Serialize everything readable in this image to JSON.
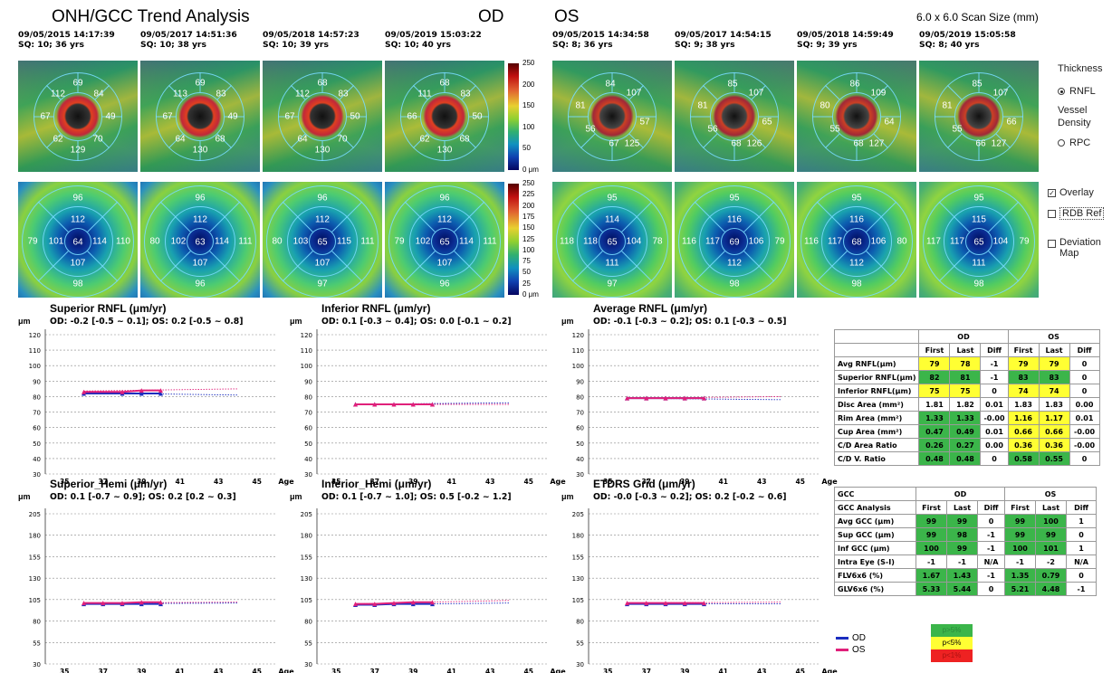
{
  "title": "ONH/GCC Trend Analysis",
  "od_label": "OD",
  "os_label": "OS",
  "scan_size": "6.0 x 6.0 Scan Size (mm)",
  "headers": [
    {
      "date": "09/05/2015 14:17:39",
      "sq": "SQ: 10; 36 yrs"
    },
    {
      "date": "09/05/2017 14:51:36",
      "sq": "SQ: 10; 38 yrs"
    },
    {
      "date": "09/05/2018 14:57:23",
      "sq": "SQ: 10; 39 yrs"
    },
    {
      "date": "09/05/2019 15:03:22",
      "sq": "SQ: 10; 40 yrs"
    },
    {
      "date": "09/05/2015 14:34:58",
      "sq": "SQ: 8; 36 yrs"
    },
    {
      "date": "09/05/2017 14:54:15",
      "sq": "SQ: 9; 38 yrs"
    },
    {
      "date": "09/05/2018 14:59:49",
      "sq": "SQ: 9; 39 yrs"
    },
    {
      "date": "09/05/2019 15:05:58",
      "sq": "SQ: 8; 40 yrs"
    }
  ],
  "rnfl_maps": [
    {
      "T": "67",
      "TS": "112",
      "S": "69",
      "NS": "84",
      "N": "49",
      "NI": "70",
      "I": "129",
      "TI": "62"
    },
    {
      "T": "67",
      "TS": "113",
      "S": "69",
      "NS": "83",
      "N": "49",
      "NI": "68",
      "I": "130",
      "TI": "64"
    },
    {
      "T": "67",
      "TS": "112",
      "S": "68",
      "NS": "83",
      "N": "50",
      "NI": "70",
      "I": "130",
      "TI": "64"
    },
    {
      "T": "66",
      "TS": "111",
      "S": "68",
      "NS": "83",
      "N": "50",
      "NI": "68",
      "I": "130",
      "TI": "62"
    },
    {
      "T": "81",
      "TS": "",
      "S": "84",
      "NS": "107",
      "N": "57",
      "NI": "125",
      "I": "67",
      "TI": "56"
    },
    {
      "T": "81",
      "TS": "",
      "S": "85",
      "NS": "107",
      "N": "65",
      "NI": "126",
      "I": "68",
      "TI": "56"
    },
    {
      "T": "80",
      "TS": "",
      "S": "86",
      "NS": "109",
      "N": "64",
      "NI": "127",
      "I": "68",
      "TI": "55"
    },
    {
      "T": "81",
      "TS": "",
      "S": "85",
      "NS": "107",
      "N": "66",
      "NI": "127",
      "I": "66",
      "TI": "55"
    }
  ],
  "gcc_maps": [
    {
      "so": "96",
      "si": "112",
      "to": "79",
      "ti": "101",
      "c": "64",
      "ni": "114",
      "no": "110",
      "ii": "107",
      "io": "98"
    },
    {
      "so": "96",
      "si": "112",
      "to": "80",
      "ti": "102",
      "c": "63",
      "ni": "114",
      "no": "111",
      "ii": "107",
      "io": "96"
    },
    {
      "so": "96",
      "si": "112",
      "to": "80",
      "ti": "103",
      "c": "65",
      "ni": "115",
      "no": "111",
      "ii": "107",
      "io": "97"
    },
    {
      "so": "96",
      "si": "112",
      "to": "79",
      "ti": "102",
      "c": "65",
      "ni": "114",
      "no": "111",
      "ii": "107",
      "io": "96"
    },
    {
      "so": "95",
      "si": "114",
      "to": "118",
      "ti": "118",
      "c": "65",
      "ni": "104",
      "no": "78",
      "ii": "111",
      "io": "97"
    },
    {
      "so": "95",
      "si": "116",
      "to": "116",
      "ti": "117",
      "c": "69",
      "ni": "106",
      "no": "79",
      "ii": "112",
      "io": "98"
    },
    {
      "so": "95",
      "si": "116",
      "to": "116",
      "ti": "117",
      "c": "68",
      "ni": "106",
      "no": "80",
      "ii": "112",
      "io": "98"
    },
    {
      "so": "95",
      "si": "115",
      "to": "117",
      "ti": "117",
      "c": "65",
      "ni": "104",
      "no": "79",
      "ii": "111",
      "io": "98"
    }
  ],
  "colorbar1": [
    "250",
    "200",
    "150",
    "100",
    "50",
    "0 μm"
  ],
  "colorbar1_ticks": [
    "250",
    "225",
    "200",
    "175",
    "150",
    "125",
    "100",
    "75",
    "50",
    "25",
    "0 μm"
  ],
  "side": {
    "thickness": "Thickness",
    "rnfl": "RNFL",
    "vessel": "Vessel",
    "density": "Density",
    "rpc": "RPC",
    "overlay": "Overlay",
    "rdb": "RDB Ref",
    "dev1": "Deviation",
    "dev2": "Map"
  },
  "charts": [
    {
      "title": "Superior RNFL (μm/yr)",
      "sub": "OD: -0.2 [-0.5 ~ 0.1]; OS: 0.2 [-0.5 ~ 0.8]",
      "ylabels": [
        "120",
        "110",
        "100",
        "90",
        "80",
        "70",
        "60",
        "50",
        "40",
        "30"
      ]
    },
    {
      "title": "Inferior RNFL (μm/yr)",
      "sub": "OD: 0.1 [-0.3 ~ 0.4]; OS: 0.0 [-0.1 ~ 0.2]",
      "ylabels": [
        "120",
        "110",
        "100",
        "90",
        "80",
        "70",
        "60",
        "50",
        "40",
        "30"
      ]
    },
    {
      "title": "Average RNFL (μm/yr)",
      "sub": "OD: -0.1 [-0.3 ~ 0.2]; OS: 0.1 [-0.3 ~ 0.5]",
      "ylabels": [
        "120",
        "110",
        "100",
        "90",
        "80",
        "70",
        "60",
        "50",
        "40",
        "30"
      ]
    },
    {
      "title": "Superior_Hemi (μm/yr)",
      "sub": "OD: 0.1 [-0.7 ~ 0.9]; OS: 0.2 [0.2 ~ 0.3]",
      "ylabels": [
        "205",
        "180",
        "155",
        "130",
        "105",
        "80",
        "55",
        "30"
      ]
    },
    {
      "title": "Inferior_Hemi (μm/yr)",
      "sub": "OD: 0.1 [-0.7 ~ 1.0]; OS: 0.5 [-0.2 ~ 1.2]",
      "ylabels": [
        "205",
        "180",
        "155",
        "130",
        "105",
        "80",
        "55",
        "30"
      ]
    },
    {
      "title": "ETDRS Grid (μm/yr)",
      "sub": "OD: -0.0 [-0.3 ~ 0.2]; OS: 0.2 [-0.2 ~ 0.6]",
      "ylabels": [
        "205",
        "180",
        "155",
        "130",
        "105",
        "80",
        "55",
        "30"
      ]
    }
  ],
  "xlabels": [
    "35",
    "37",
    "39",
    "41",
    "43",
    "45"
  ],
  "age_label": "Age",
  "um_label": "μm",
  "chart_data": [
    {
      "type": "line",
      "title": "Superior RNFL (μm/yr)",
      "ylim": [
        30,
        120
      ],
      "xlim": [
        34,
        46
      ],
      "series": [
        {
          "name": "OD",
          "x": [
            36,
            38,
            39,
            40
          ],
          "values": [
            82,
            82,
            82,
            82
          ]
        },
        {
          "name": "OS",
          "x": [
            36,
            38,
            39,
            40
          ],
          "values": [
            83,
            83,
            84,
            84
          ]
        }
      ],
      "trend_od": [
        [
          36,
          82.4
        ],
        [
          44,
          81.0
        ]
      ],
      "trend_os": [
        [
          36,
          83.6
        ],
        [
          44,
          85.0
        ]
      ]
    },
    {
      "type": "line",
      "title": "Inferior RNFL (μm/yr)",
      "ylim": [
        30,
        120
      ],
      "xlim": [
        34,
        46
      ],
      "series": [
        {
          "name": "OD",
          "x": [
            36,
            37,
            38,
            39,
            40
          ],
          "values": [
            75,
            75,
            75,
            75,
            75
          ]
        },
        {
          "name": "OS",
          "x": [
            36,
            37,
            38,
            39,
            40
          ],
          "values": [
            75,
            75,
            75,
            75,
            75
          ]
        }
      ],
      "trend_od": [
        [
          36,
          75
        ],
        [
          44,
          76
        ]
      ],
      "trend_os": [
        [
          36,
          75
        ],
        [
          44,
          75
        ]
      ]
    },
    {
      "type": "line",
      "title": "Average RNFL (μm/yr)",
      "ylim": [
        30,
        120
      ],
      "xlim": [
        34,
        46
      ],
      "series": [
        {
          "name": "OD",
          "x": [
            36,
            37,
            38,
            39,
            40
          ],
          "values": [
            79,
            79,
            79,
            79,
            79
          ]
        },
        {
          "name": "OS",
          "x": [
            36,
            37,
            38,
            39,
            40
          ],
          "values": [
            79,
            79,
            79,
            79,
            79
          ]
        }
      ],
      "trend_od": [
        [
          36,
          79
        ],
        [
          44,
          78
        ]
      ],
      "trend_os": [
        [
          36,
          79
        ],
        [
          44,
          80
        ]
      ]
    },
    {
      "type": "line",
      "title": "Superior_Hemi (μm/yr)",
      "ylim": [
        30,
        205
      ],
      "xlim": [
        34,
        46
      ],
      "series": [
        {
          "name": "OD",
          "x": [
            36,
            37,
            38,
            39,
            40
          ],
          "values": [
            100,
            100,
            100,
            100,
            100
          ]
        },
        {
          "name": "OS",
          "x": [
            36,
            37,
            38,
            39,
            40
          ],
          "values": [
            101,
            101,
            101,
            102,
            102
          ]
        }
      ],
      "trend_od": [
        [
          36,
          100
        ],
        [
          44,
          101
        ]
      ],
      "trend_os": [
        [
          36,
          101
        ],
        [
          44,
          102
        ]
      ]
    },
    {
      "type": "line",
      "title": "Inferior_Hemi (μm/yr)",
      "ylim": [
        30,
        205
      ],
      "xlim": [
        34,
        46
      ],
      "series": [
        {
          "name": "OD",
          "x": [
            36,
            37,
            38,
            39,
            40
          ],
          "values": [
            99,
            99,
            100,
            100,
            100
          ]
        },
        {
          "name": "OS",
          "x": [
            36,
            37,
            38,
            39,
            40
          ],
          "values": [
            100,
            100,
            101,
            102,
            102
          ]
        }
      ],
      "trend_od": [
        [
          36,
          99
        ],
        [
          44,
          101
        ]
      ],
      "trend_os": [
        [
          36,
          100
        ],
        [
          44,
          104
        ]
      ]
    },
    {
      "type": "line",
      "title": "ETDRS Grid (μm/yr)",
      "ylim": [
        30,
        205
      ],
      "xlim": [
        34,
        46
      ],
      "series": [
        {
          "name": "OD",
          "x": [
            36,
            37,
            38,
            39,
            40
          ],
          "values": [
            100,
            100,
            100,
            100,
            100
          ]
        },
        {
          "name": "OS",
          "x": [
            36,
            37,
            38,
            39,
            40
          ],
          "values": [
            101,
            101,
            101,
            101,
            101
          ]
        }
      ],
      "trend_od": [
        [
          36,
          100
        ],
        [
          44,
          100
        ]
      ],
      "trend_os": [
        [
          36,
          101
        ],
        [
          44,
          102
        ]
      ]
    }
  ],
  "table1": {
    "head1": [
      "",
      "OD",
      "",
      "",
      "OS",
      "",
      ""
    ],
    "head2": [
      "",
      "First",
      "Last",
      "Diff",
      "First",
      "Last",
      "Diff"
    ],
    "rows": [
      {
        "cells": [
          "Avg RNFL(μm)",
          "79",
          "78",
          "-1",
          "79",
          "79",
          "0"
        ],
        "cls": [
          "",
          "y",
          "y",
          "",
          "y",
          "y",
          ""
        ]
      },
      {
        "cells": [
          "Superior RNFL(μm)",
          "82",
          "81",
          "-1",
          "83",
          "83",
          "0"
        ],
        "cls": [
          "",
          "g",
          "g",
          "",
          "g",
          "g",
          ""
        ]
      },
      {
        "cells": [
          "Inferior RNFL(μm)",
          "75",
          "75",
          "0",
          "74",
          "74",
          "0"
        ],
        "cls": [
          "",
          "y",
          "y",
          "",
          "y",
          "y",
          ""
        ]
      },
      {
        "cells": [
          "Disc Area (mm²)",
          "1.81",
          "1.82",
          "0.01",
          "1.83",
          "1.83",
          "0.00"
        ],
        "cls": [
          "",
          "",
          "",
          "",
          "",
          "",
          ""
        ]
      },
      {
        "cells": [
          "Rim Area (mm²)",
          "1.33",
          "1.33",
          "-0.00",
          "1.16",
          "1.17",
          "0.01"
        ],
        "cls": [
          "",
          "g",
          "g",
          "",
          "y",
          "y",
          ""
        ]
      },
      {
        "cells": [
          "Cup Area (mm²)",
          "0.47",
          "0.49",
          "0.01",
          "0.66",
          "0.66",
          "-0.00"
        ],
        "cls": [
          "",
          "g",
          "g",
          "",
          "y",
          "y",
          ""
        ]
      },
      {
        "cells": [
          "C/D Area Ratio",
          "0.26",
          "0.27",
          "0.00",
          "0.36",
          "0.36",
          "-0.00"
        ],
        "cls": [
          "",
          "g",
          "g",
          "",
          "y",
          "y",
          ""
        ]
      },
      {
        "cells": [
          "C/D V. Ratio",
          "0.48",
          "0.48",
          "0",
          "0.58",
          "0.55",
          "0"
        ],
        "cls": [
          "",
          "g",
          "g",
          "",
          "g",
          "g",
          ""
        ]
      }
    ]
  },
  "table2": {
    "head1": [
      "GCC",
      "OD",
      "",
      "",
      "OS",
      "",
      ""
    ],
    "head2": [
      "GCC Analysis",
      "First",
      "Last",
      "Diff",
      "First",
      "Last",
      "Diff"
    ],
    "rows": [
      {
        "cells": [
          "Avg GCC (μm)",
          "99",
          "99",
          "0",
          "99",
          "100",
          "1"
        ],
        "cls": [
          "",
          "g",
          "g",
          "",
          "g",
          "g",
          ""
        ]
      },
      {
        "cells": [
          "Sup GCC (μm)",
          "99",
          "98",
          "-1",
          "99",
          "99",
          "0"
        ],
        "cls": [
          "",
          "g",
          "g",
          "",
          "g",
          "g",
          ""
        ]
      },
      {
        "cells": [
          "Inf GCC (μm)",
          "100",
          "99",
          "-1",
          "100",
          "101",
          "1"
        ],
        "cls": [
          "",
          "g",
          "g",
          "",
          "g",
          "g",
          ""
        ]
      },
      {
        "cells": [
          "Intra Eye (S-I)",
          "-1",
          "-1",
          "N/A",
          "-1",
          "-2",
          "N/A"
        ],
        "cls": [
          "",
          "",
          "",
          "",
          "",
          "",
          ""
        ]
      },
      {
        "cells": [
          "FLV6x6 (%)",
          "1.67",
          "1.43",
          "-1",
          "1.35",
          "0.79",
          "0"
        ],
        "cls": [
          "",
          "g",
          "g",
          "",
          "g",
          "g",
          ""
        ]
      },
      {
        "cells": [
          "GLV6x6 (%)",
          "5.33",
          "5.44",
          "0",
          "5.21",
          "4.48",
          "-1"
        ],
        "cls": [
          "",
          "g",
          "g",
          "",
          "g",
          "g",
          ""
        ]
      }
    ]
  },
  "legend": {
    "od": "OD",
    "os": "OS",
    "p1": "p>5%",
    "p2": "p<5%",
    "p3": "p<1%"
  },
  "colors": {
    "od": "#1a2dbf",
    "os": "#e0207a",
    "green": "#3bb54a",
    "yellow": "#ffff33",
    "red": "#ee2222"
  }
}
